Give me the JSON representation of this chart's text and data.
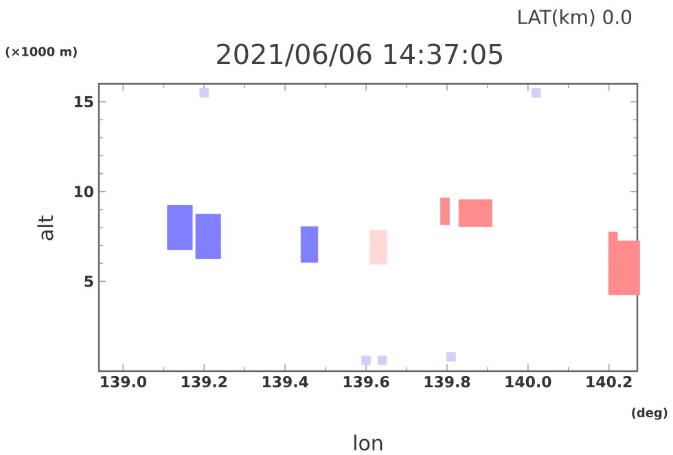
{
  "chart_data": {
    "type": "scatter",
    "title": "2021/06/06 14:37:05",
    "subtitle": "LAT(km) 0.0",
    "xlabel": "lon",
    "ylabel": "alt",
    "annotations": [
      "(×1000 m)",
      "(deg)"
    ],
    "xlim": [
      138.94,
      140.27
    ],
    "ylim": [
      0,
      16
    ],
    "xticks": [
      {
        "value": 139.0,
        "label": "139.0"
      },
      {
        "value": 139.2,
        "label": "139.2"
      },
      {
        "value": 139.4,
        "label": "139.4"
      },
      {
        "value": 139.6,
        "label": "139.6"
      },
      {
        "value": 139.8,
        "label": "139.8"
      },
      {
        "value": 140.0,
        "label": "140.0"
      },
      {
        "value": 140.2,
        "label": "140.2"
      }
    ],
    "yticks": [
      5,
      10,
      15
    ],
    "marker": "square",
    "grid": false,
    "legend": false,
    "series": [
      {
        "color": "#8080ff",
        "x": [
          139.12,
          139.12,
          139.12,
          139.12,
          139.12,
          139.14,
          139.14,
          139.14,
          139.14,
          139.14,
          139.16,
          139.16,
          139.16,
          139.16,
          139.16,
          139.19,
          139.19,
          139.19,
          139.19,
          139.19,
          139.21,
          139.21,
          139.21,
          139.21,
          139.21,
          139.23,
          139.23,
          139.23,
          139.23,
          139.23,
          139.45,
          139.45,
          139.45,
          139.45,
          139.47,
          139.47,
          139.47,
          139.47
        ],
        "values": [
          7.0,
          7.5,
          8.0,
          8.5,
          9.0,
          7.0,
          7.5,
          8.0,
          8.5,
          9.0,
          7.0,
          7.5,
          8.0,
          8.5,
          9.0,
          6.5,
          7.0,
          7.5,
          8.0,
          8.5,
          6.5,
          7.0,
          7.5,
          8.0,
          8.5,
          6.5,
          7.0,
          7.5,
          8.0,
          8.5,
          6.3,
          6.8,
          7.3,
          7.8,
          6.3,
          6.8,
          7.3,
          7.8
        ]
      },
      {
        "color": "#ffd8d8",
        "x": [
          139.62,
          139.62,
          139.62,
          139.62,
          139.64,
          139.64,
          139.64,
          139.64
        ],
        "values": [
          6.2,
          6.7,
          7.2,
          7.6,
          6.2,
          6.7,
          7.2,
          7.6
        ]
      },
      {
        "color": "#ff8c8c",
        "x": [
          139.795,
          139.795,
          139.795,
          139.84,
          139.84,
          139.84,
          139.86,
          139.86,
          139.86,
          139.88,
          139.88,
          139.88,
          139.9,
          139.9,
          139.9,
          140.21,
          140.21,
          140.21,
          140.21,
          140.21,
          140.21,
          140.21,
          140.23,
          140.23,
          140.23,
          140.23,
          140.23,
          140.23,
          140.25,
          140.25,
          140.25,
          140.25,
          140.25,
          140.25,
          140.265,
          140.265,
          140.265,
          140.265,
          140.265,
          140.265
        ],
        "values": [
          8.4,
          8.9,
          9.4,
          8.3,
          8.8,
          9.3,
          8.3,
          8.8,
          9.3,
          8.3,
          8.8,
          9.3,
          8.3,
          8.8,
          9.3,
          4.5,
          5.0,
          5.5,
          6.0,
          6.5,
          7.0,
          7.5,
          4.5,
          5.0,
          5.5,
          6.0,
          6.5,
          7.0,
          4.5,
          5.0,
          5.5,
          6.0,
          6.5,
          7.0,
          4.5,
          5.0,
          5.5,
          6.0,
          6.5,
          7.0
        ]
      },
      {
        "color": "#d0d0ff",
        "x": [
          139.2,
          140.02,
          139.6,
          139.64,
          139.81
        ],
        "values": [
          15.5,
          15.5,
          0.6,
          0.6,
          0.8
        ]
      }
    ]
  }
}
